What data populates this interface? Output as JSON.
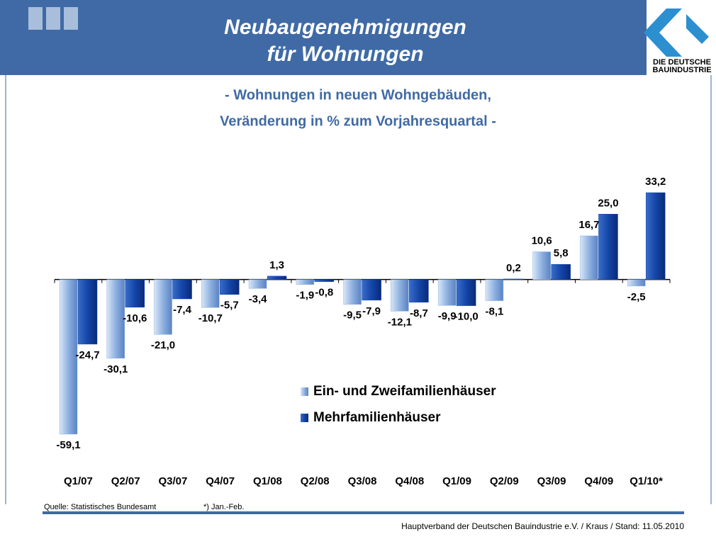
{
  "header": {
    "title_lines": [
      "Neubaugenehmigungen",
      "für Wohnungen"
    ],
    "logo_lines": [
      "DIE DEUTSCHE",
      "BAUINDUSTRIE"
    ]
  },
  "chart_data": {
    "type": "bar",
    "subtitle_lines": [
      "- Wohnungen in neuen Wohngebäuden,",
      "Veränderung in % zum Vorjahresquartal -"
    ],
    "categories": [
      "Q1/07",
      "Q2/07",
      "Q3/07",
      "Q4/07",
      "Q1/08",
      "Q2/08",
      "Q3/08",
      "Q4/08",
      "Q1/09",
      "Q2/09",
      "Q3/09",
      "Q4/09",
      "Q1/10*"
    ],
    "series": [
      {
        "name": "Ein- und Zweifamilienhäuser",
        "color": "#8fb1e0",
        "values": [
          -59.1,
          -30.1,
          -21.0,
          -10.7,
          -3.4,
          -1.9,
          -9.5,
          -12.1,
          -9.9,
          -8.1,
          10.6,
          16.7,
          -2.5
        ],
        "value_labels": [
          "-59,1",
          "-30,1",
          "-21,0",
          "-10,7",
          "-3,4",
          "-1,9",
          "-9,5",
          "-12,1",
          "-9,9",
          "-8,1",
          "10,6",
          "16,7",
          "-2,5"
        ]
      },
      {
        "name": "Mehrfamilienhäuser",
        "color": "#1446a8",
        "values": [
          -24.7,
          -10.6,
          -7.4,
          -5.7,
          1.3,
          -0.8,
          -7.9,
          -8.7,
          -10.0,
          0.2,
          5.8,
          25.0,
          33.2
        ],
        "value_labels": [
          "-24,7",
          "-10,6",
          "-7,4",
          "-5,7",
          "1,3",
          "-0,8",
          "-7,9",
          "-8,7",
          "-10,0",
          "0,2",
          "5,8",
          "25,0",
          "33,2"
        ]
      }
    ]
  },
  "footer": {
    "source": "Quelle: Statistisches Bundesamt",
    "note": "*) Jan.-Feb.",
    "credit": "Hauptverband der Deutschen Bauindustrie e.V. / Kraus / Stand: 11.05.2010"
  }
}
